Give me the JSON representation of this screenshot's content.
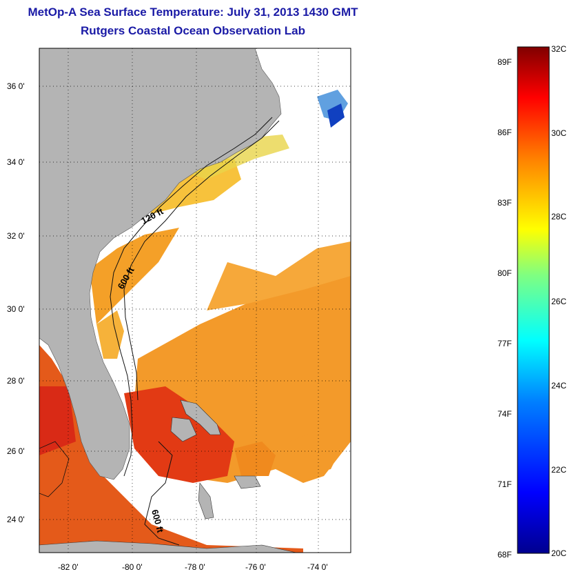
{
  "title": "MetOp-A Sea Surface Temperature:  July 31, 2013 1430 GMT",
  "subtitle": "Rutgers Coastal Ocean Observation Lab",
  "map": {
    "lat_ticks": [
      "36 0'",
      "34 0'",
      "32 0'",
      "30 0'",
      "28 0'",
      "26 0'",
      "24 0'"
    ],
    "lon_ticks": [
      "-82 0'",
      "-80 0'",
      "-78 0'",
      "-76 0'",
      "-74 0'"
    ],
    "contour_labels": [
      "120 ft",
      "600 ft",
      "600 ft"
    ],
    "colors": {
      "land": "#b4b4b4",
      "no_data": "#ffffff",
      "warm": "#f08a1e",
      "hot": "#dc2a14"
    }
  },
  "colorbar": {
    "fahrenheit_labels": [
      "89F",
      "86F",
      "83F",
      "80F",
      "77F",
      "74F",
      "71F",
      "68F"
    ],
    "celsius_labels": [
      "32C",
      "30C",
      "28C",
      "26C",
      "24C",
      "22C",
      "20C"
    ],
    "range_c": [
      20,
      32
    ],
    "colors": [
      "#00008f",
      "#0000ff",
      "#0080ff",
      "#00ffff",
      "#80ff80",
      "#ffff00",
      "#ff8000",
      "#ff0000",
      "#800000"
    ]
  }
}
